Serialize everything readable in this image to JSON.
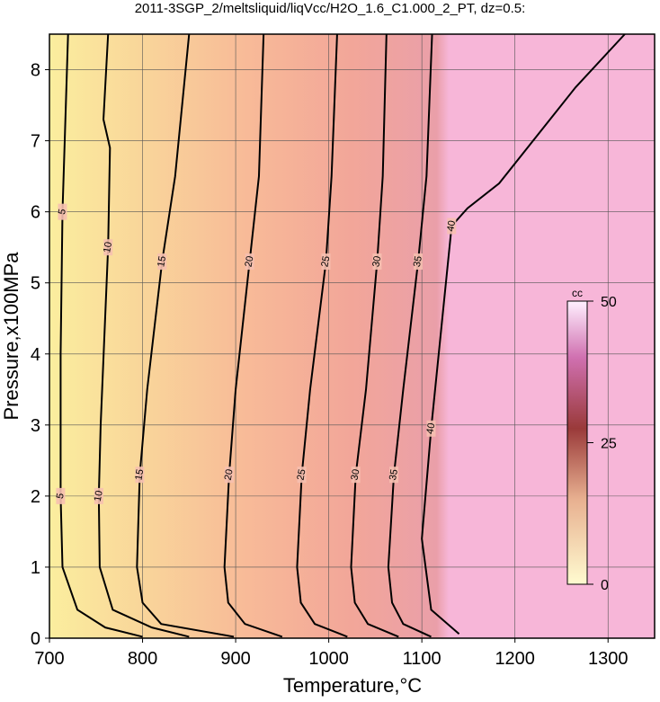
{
  "chart_data": {
    "type": "contour",
    "title": "2011-3SGP_2/meltsliquid/liqVcc/H2O_1.6_C1.000_2_PT, dz=0.5:",
    "x_label": "Temperature,°C",
    "y_label": "Pressure,x100MPa",
    "xlim": [
      700,
      1350
    ],
    "ylim": [
      0,
      8.5
    ],
    "xticks": [
      700,
      800,
      900,
      1000,
      1100,
      1200,
      1300
    ],
    "yticks": [
      0,
      1,
      2,
      3,
      4,
      5,
      6,
      7,
      8
    ],
    "grid": true,
    "line_color": "#000000",
    "contours": [
      {
        "level": 5,
        "x": [
          720,
          714,
          712,
          712,
          714,
          730,
          760,
          800
        ],
        "y": [
          8.5,
          6,
          4,
          2,
          1,
          0.4,
          0.15,
          0.02
        ]
      },
      {
        "level": 10,
        "x": [
          763,
          758,
          765,
          763,
          755,
          753,
          754,
          768,
          810,
          850
        ],
        "y": [
          8.5,
          7.3,
          6.9,
          5.5,
          3,
          2,
          1,
          0.4,
          0.15,
          0.02
        ]
      },
      {
        "level": 15,
        "x": [
          850,
          835,
          821,
          805,
          797,
          794,
          800,
          820,
          898
        ],
        "y": [
          8.5,
          6.5,
          5.3,
          3.5,
          2.3,
          1,
          0.5,
          0.2,
          0.02
        ]
      },
      {
        "level": 20,
        "x": [
          930,
          925,
          915,
          900,
          893,
          888,
          892,
          910,
          950
        ],
        "y": [
          8.5,
          6.5,
          5.3,
          3.5,
          2.3,
          1,
          0.5,
          0.2,
          0.02
        ]
      },
      {
        "level": 25,
        "x": [
          1009,
          1003,
          997,
          980,
          971,
          966,
          970,
          985,
          1020
        ],
        "y": [
          8.5,
          6.5,
          5.3,
          3.5,
          2.3,
          1,
          0.5,
          0.2,
          0.02
        ]
      },
      {
        "level": 30,
        "x": [
          1062,
          1058,
          1052,
          1040,
          1029,
          1024,
          1028,
          1042,
          1075
        ],
        "y": [
          8.5,
          6.5,
          5.3,
          3.5,
          2.3,
          1,
          0.5,
          0.2,
          0.02
        ]
      },
      {
        "level": 35,
        "x": [
          1111,
          1105,
          1096,
          1080,
          1070,
          1064,
          1068,
          1080,
          1110
        ],
        "y": [
          8.5,
          6.5,
          5.3,
          3.5,
          2.3,
          1,
          0.5,
          0.2,
          0.02
        ]
      },
      {
        "level": 40,
        "x": [
          1318,
          1265,
          1183,
          1149,
          1132,
          1110,
          1100,
          1110,
          1140
        ],
        "y": [
          8.5,
          7.75,
          6.4,
          6.05,
          5.8,
          2.95,
          1.4,
          0.4,
          0.06
        ]
      }
    ],
    "colorbar": {
      "label": "cc",
      "lim": [
        0,
        50
      ],
      "ticks": [
        0,
        25,
        50
      ]
    }
  }
}
